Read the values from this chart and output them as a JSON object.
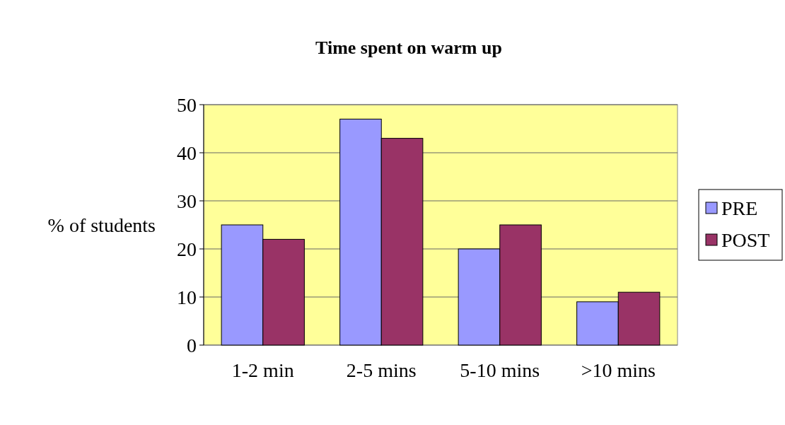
{
  "chart_data": {
    "type": "bar",
    "title": "Time spent on warm up",
    "ylabel": "% of students",
    "categories": [
      "1-2 min",
      "2-5 mins",
      "5-10 mins",
      ">10 mins"
    ],
    "series": [
      {
        "name": "PRE",
        "color": "#9999ff",
        "values": [
          25,
          47,
          20,
          9
        ]
      },
      {
        "name": "POST",
        "color": "#993366",
        "values": [
          22,
          43,
          25,
          11
        ]
      }
    ],
    "ylim": [
      0,
      50
    ],
    "yticks": [
      0,
      10,
      20,
      30,
      40,
      50
    ],
    "grid": "y",
    "legend": "right"
  }
}
